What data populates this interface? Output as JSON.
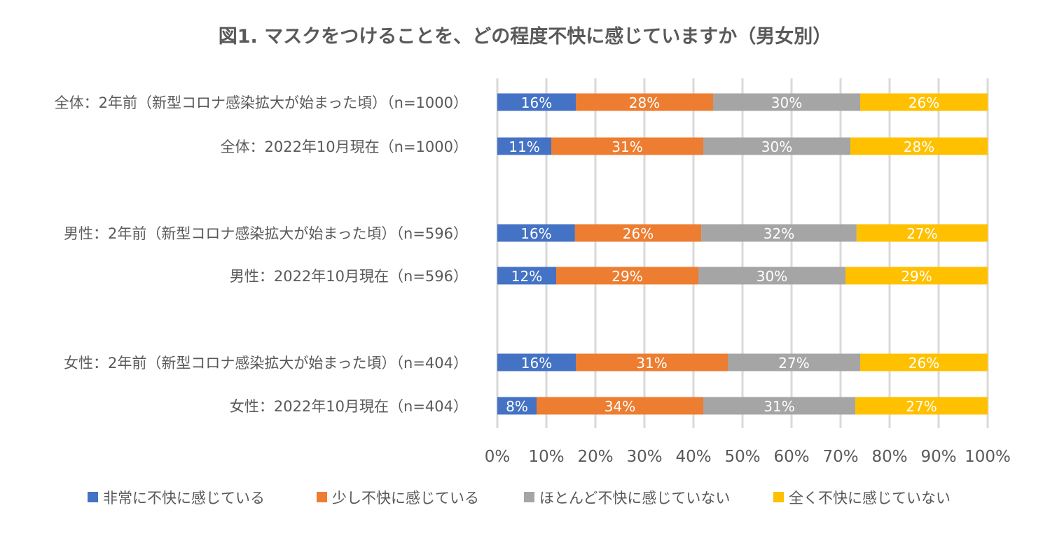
{
  "chart_data": {
    "type": "bar",
    "orientation": "horizontal",
    "stacked": "percent",
    "title": "図1. マスクをつけることを、どの程度不快に感じていますか（男女別）",
    "categories": [
      "全体：2年前（新型コロナ感染拡大が始まった頃）（n=1000）",
      "全体：2022年10月現在（n=1000）",
      "男性：2年前（新型コロナ感染拡大が始まった頃）（n=596）",
      "男性：2022年10月現在（n=596）",
      "女性：2年前（新型コロナ感染拡大が始まった頃）（n=404）",
      "女性：2022年10月現在（n=404）"
    ],
    "series": [
      {
        "name": "非常に不快に感じている",
        "color": "#4472C4",
        "values": [
          16,
          11,
          16,
          12,
          16,
          8
        ]
      },
      {
        "name": "少し不快に感じている",
        "color": "#ED7D31",
        "values": [
          28,
          31,
          26,
          29,
          31,
          34
        ]
      },
      {
        "name": "ほとんど不快に感じていない",
        "color": "#A5A5A5",
        "values": [
          30,
          30,
          32,
          30,
          27,
          31
        ]
      },
      {
        "name": "全く不快に感じていない",
        "color": "#FFC000",
        "values": [
          26,
          28,
          27,
          29,
          26,
          27
        ]
      }
    ],
    "xticks": [
      "0%",
      "10%",
      "20%",
      "30%",
      "40%",
      "50%",
      "60%",
      "70%",
      "80%",
      "90%",
      "100%"
    ],
    "xlim": [
      0,
      100
    ],
    "grid": true,
    "legend": "bottom"
  }
}
